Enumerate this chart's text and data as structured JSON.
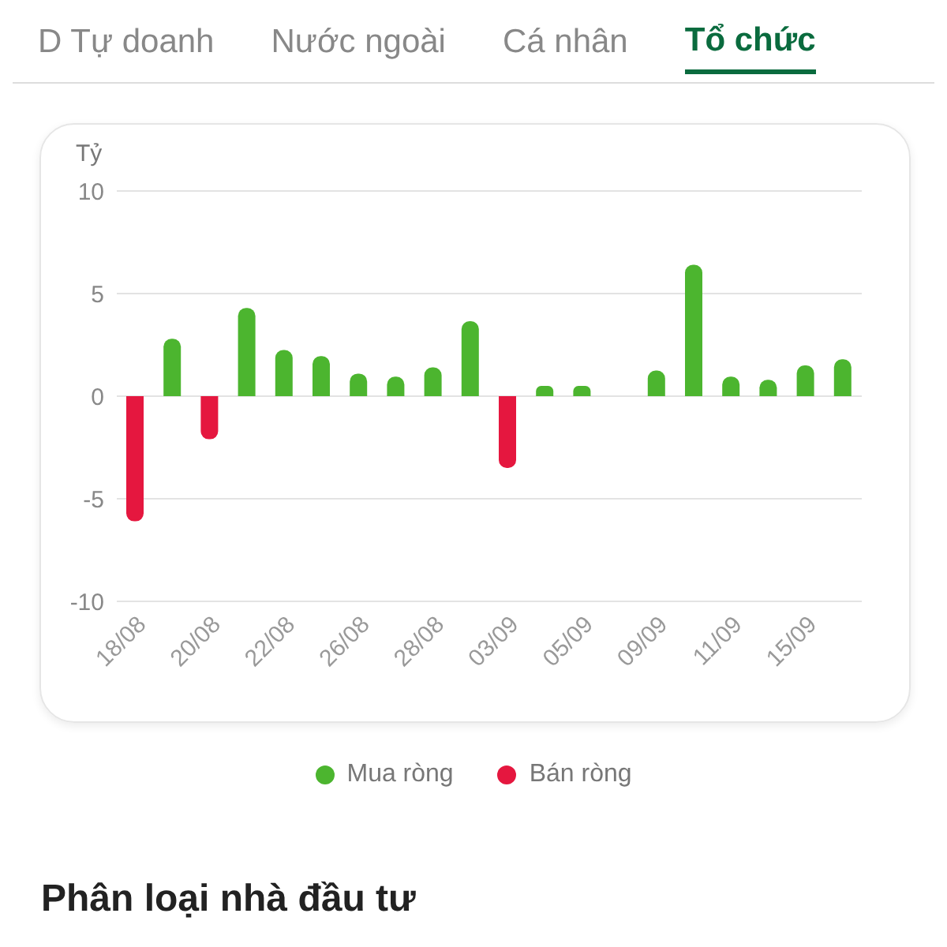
{
  "chart_data": {
    "type": "bar",
    "ylabel": "Tỷ",
    "stacked": true,
    "categories": [
      "18/08",
      null,
      "20/08",
      null,
      "22/08",
      null,
      "26/08",
      null,
      "28/08",
      null,
      "03/09",
      null,
      "05/09",
      null,
      "09/09",
      null,
      "11/09",
      null,
      "15/09",
      null
    ],
    "series": [
      {
        "name": "Mua ròng",
        "color": "#4cb52f",
        "values": [
          null,
          2.8,
          null,
          4.3,
          2.25,
          1.95,
          1.1,
          0.95,
          1.4,
          3.65,
          null,
          0.5,
          0.5,
          null,
          1.25,
          6.4,
          0.95,
          0.8,
          1.5,
          1.8
        ]
      },
      {
        "name": "Bán ròng",
        "color": "#e5173f",
        "values": [
          -6.1,
          null,
          -2.1,
          null,
          null,
          null,
          null,
          null,
          null,
          null,
          -3.5,
          null,
          null,
          null,
          null,
          null,
          null,
          null,
          null,
          null
        ]
      }
    ],
    "ylim": [
      -10,
      10
    ],
    "yticks": [
      -10,
      -5,
      0,
      5,
      10
    ],
    "grid": "y",
    "legend": "bottom",
    "annotations": [
      "D Tự doanh",
      "Nước ngoài",
      "Cá nhân",
      "Tổ chức",
      "Phân loại nhà đầu tư"
    ]
  }
}
